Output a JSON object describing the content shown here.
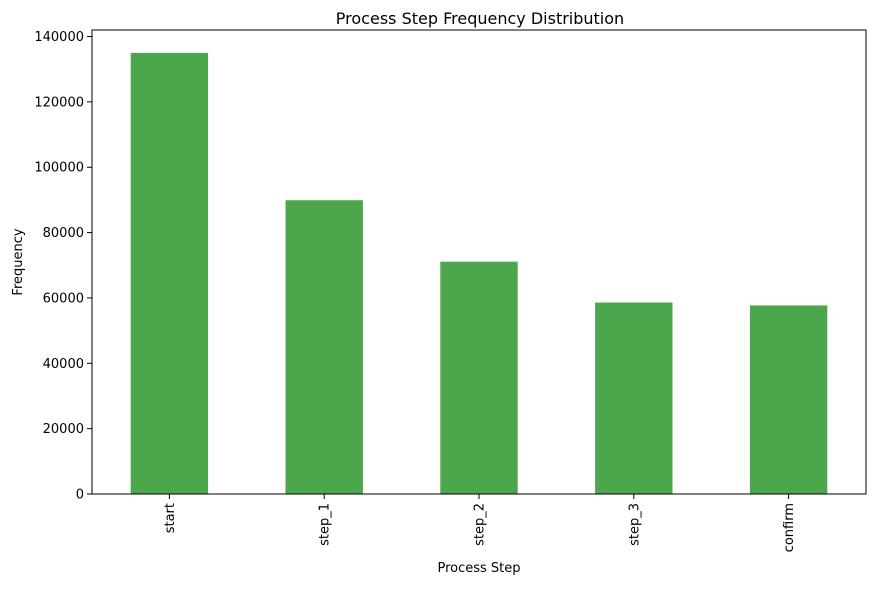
{
  "chart_data": {
    "type": "bar",
    "title": "Process Step Frequency Distribution",
    "xlabel": "Process Step",
    "ylabel": "Frequency",
    "categories": [
      "start",
      "step_1",
      "step_2",
      "step_3",
      "confirm"
    ],
    "values": [
      135000,
      89900,
      71100,
      58600,
      57700
    ],
    "ylim": [
      0,
      142000
    ],
    "yticks": [
      0,
      20000,
      40000,
      60000,
      80000,
      100000,
      120000,
      140000
    ],
    "ytick_labels": [
      "0",
      "20000",
      "40000",
      "60000",
      "80000",
      "100000",
      "120000",
      "140000"
    ],
    "bar_color": "#4ca64c",
    "grid": false,
    "legend": "none"
  }
}
